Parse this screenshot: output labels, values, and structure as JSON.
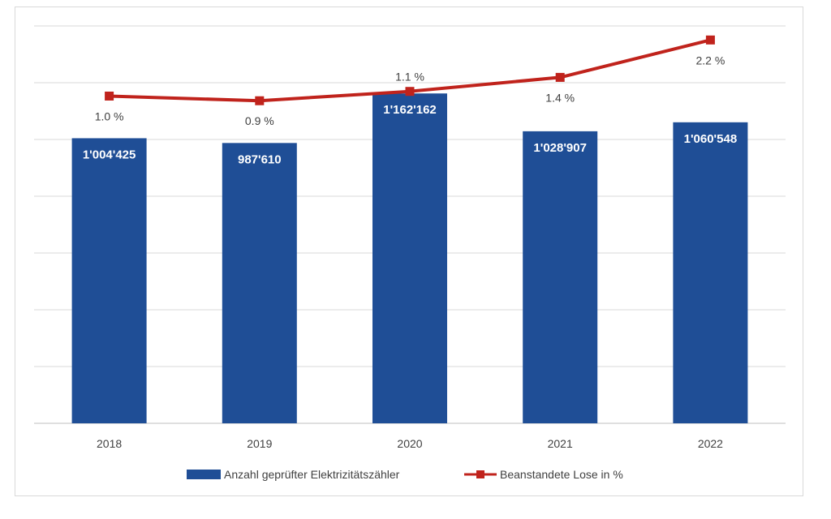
{
  "chart_data": {
    "type": "bar",
    "categories": [
      "2018",
      "2019",
      "2020",
      "2021",
      "2022"
    ],
    "series": [
      {
        "name": "Anzahl geprüfter Elektrizitätszähler",
        "type": "bar",
        "axis": "primary",
        "values": [
          1004425,
          987610,
          1162162,
          1028907,
          1060548
        ],
        "labels": [
          "1'004'425",
          "987'610",
          "1'162'162",
          "1'028'907",
          "1'060'548"
        ],
        "color": "#1f4e96"
      },
      {
        "name": "Beanstandete Lose in %",
        "type": "line",
        "axis": "secondary",
        "values": [
          1.0,
          0.9,
          1.1,
          1.4,
          2.2
        ],
        "labels": [
          "1.0 %",
          "0.9 %",
          "1.1 %",
          "1.4 %",
          "2.2 %"
        ],
        "color": "#c0231c"
      }
    ],
    "title": "",
    "xlabel": "",
    "ylabel": "",
    "ylim": [
      0,
      1400000
    ],
    "y2lim": [
      -6,
      2.5
    ],
    "grid": true,
    "legend": "bottom"
  }
}
